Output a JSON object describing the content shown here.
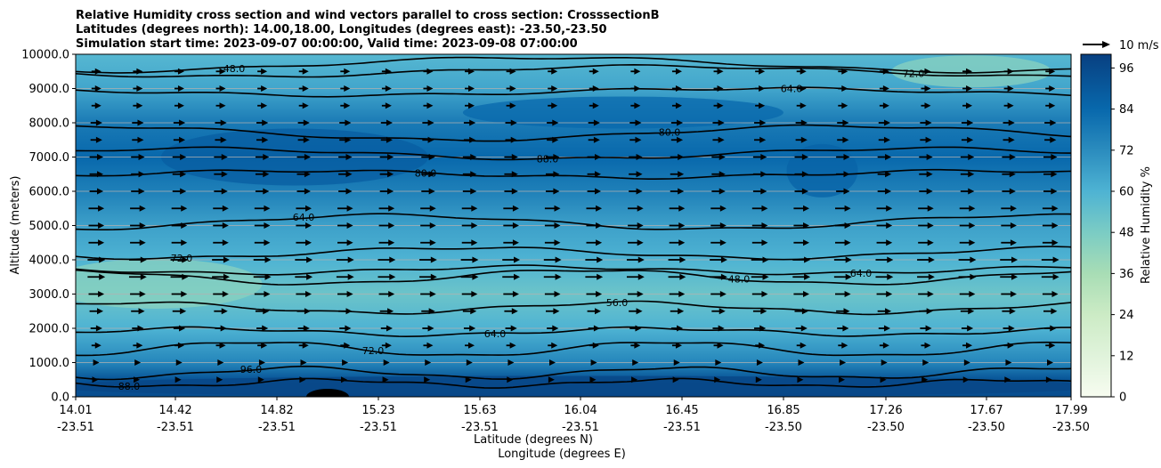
{
  "chart_data": {
    "type": "heatmap",
    "title_lines": [
      "Relative Humidity cross section and wind vectors parallel to cross section: CrosssectionB",
      "Latitudes (degrees north): 14.00,18.00, Longitudes (degrees east): -23.50,-23.50",
      "Simulation start time: 2023-09-07 00:00:00, Valid time: 2023-09-08 07:00:00"
    ],
    "ylabel": "Altitude (meters)",
    "xlabel_lat": "Latitude (degrees N)",
    "xlabel_lon": "Longitude (degrees E)",
    "ylim": [
      0,
      10000
    ],
    "yticks": [
      "0.0",
      "1000.0",
      "2000.0",
      "3000.0",
      "4000.0",
      "5000.0",
      "6000.0",
      "7000.0",
      "8000.0",
      "9000.0",
      "10000.0"
    ],
    "xticks_lat": [
      "14.01",
      "14.42",
      "14.82",
      "15.23",
      "15.63",
      "16.04",
      "16.45",
      "16.85",
      "17.26",
      "17.67",
      "17.99"
    ],
    "xticks_lon": [
      "-23.51",
      "-23.51",
      "-23.51",
      "-23.51",
      "-23.51",
      "-23.51",
      "-23.51",
      "-23.50",
      "-23.50",
      "-23.50",
      "-23.50"
    ],
    "colorbar": {
      "label": "Relative Humidity %",
      "range": [
        0,
        100
      ],
      "ticks": [
        "0",
        "12",
        "24",
        "36",
        "48",
        "60",
        "72",
        "84",
        "96"
      ]
    },
    "quiver_key": "10 m/s",
    "grid": "horizontal",
    "humidity_profile": [
      {
        "altitude": 0,
        "rh": 95
      },
      {
        "altitude": 500,
        "rh": 92
      },
      {
        "altitude": 1000,
        "rh": 74
      },
      {
        "altitude": 2000,
        "rh": 60
      },
      {
        "altitude": 3000,
        "rh": 52
      },
      {
        "altitude": 4000,
        "rh": 60
      },
      {
        "altitude": 5000,
        "rh": 66
      },
      {
        "altitude": 6000,
        "rh": 76
      },
      {
        "altitude": 7000,
        "rh": 84
      },
      {
        "altitude": 8000,
        "rh": 78
      },
      {
        "altitude": 9000,
        "rh": 64
      },
      {
        "altitude": 10000,
        "rh": 58
      }
    ],
    "contour_levels": [
      {
        "altitude": 400,
        "label": "88.0"
      },
      {
        "altitude": 700,
        "label": "96.0"
      },
      {
        "altitude": 1400,
        "label": "72.0"
      },
      {
        "altitude": 1900,
        "label": "64.0"
      },
      {
        "altitude": 2600,
        "label": "56.0"
      },
      {
        "altitude": 3500,
        "label": "48.0"
      },
      {
        "altitude": 3700,
        "label": "64.0"
      },
      {
        "altitude": 4200,
        "label": "72.0"
      },
      {
        "altitude": 5100,
        "label": "64.0"
      },
      {
        "altitude": 6500,
        "label": "80.0"
      },
      {
        "altitude": 7100,
        "label": "88.0"
      },
      {
        "altitude": 7700,
        "label": "80.0"
      },
      {
        "altitude": 8900,
        "label": "64.0"
      },
      {
        "altitude": 9500,
        "label": "72.0"
      },
      {
        "altitude": 9700,
        "label": "48.0"
      }
    ],
    "wind_rows": [
      {
        "altitude": 500,
        "speed": 2
      },
      {
        "altitude": 1000,
        "speed": 3
      },
      {
        "altitude": 1500,
        "speed": 5
      },
      {
        "altitude": 2000,
        "speed": 6
      },
      {
        "altitude": 2500,
        "speed": 7
      },
      {
        "altitude": 3000,
        "speed": 8
      },
      {
        "altitude": 3500,
        "speed": 9
      },
      {
        "altitude": 4000,
        "speed": 9
      },
      {
        "altitude": 4500,
        "speed": 8
      },
      {
        "altitude": 5000,
        "speed": 8
      },
      {
        "altitude": 5500,
        "speed": 8
      },
      {
        "altitude": 6000,
        "speed": 7
      },
      {
        "altitude": 6500,
        "speed": 7
      },
      {
        "altitude": 7000,
        "speed": 7
      },
      {
        "altitude": 7500,
        "speed": 6
      },
      {
        "altitude": 8000,
        "speed": 6
      },
      {
        "altitude": 8500,
        "speed": 5
      },
      {
        "altitude": 9000,
        "speed": 5
      },
      {
        "altitude": 9500,
        "speed": 5
      }
    ],
    "wind_columns": 24
  }
}
